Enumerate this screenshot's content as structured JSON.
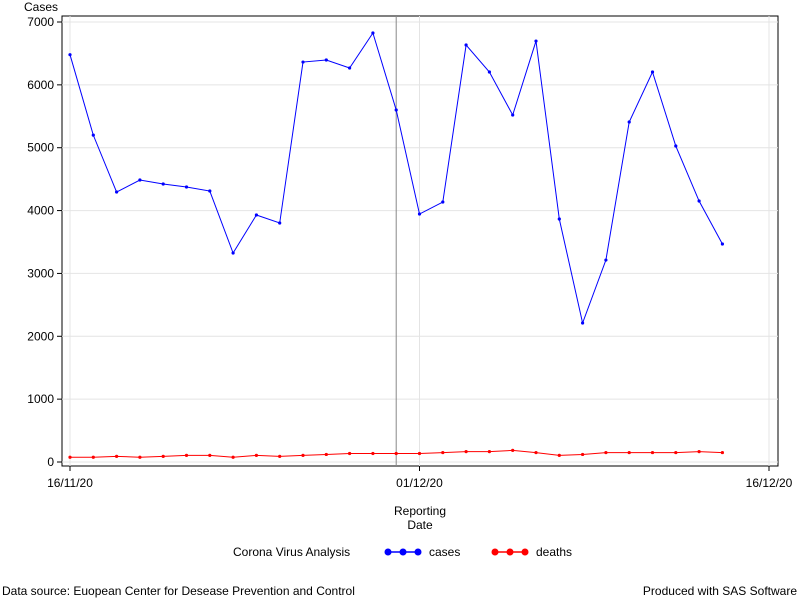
{
  "chart_data": {
    "type": "line",
    "y_label": "Cases",
    "x_label": "Reporting Date",
    "legend_title": "Corona Virus Analysis",
    "x": [
      "16/11/20",
      "17/11/20",
      "18/11/20",
      "19/11/20",
      "20/11/20",
      "21/11/20",
      "22/11/20",
      "23/11/20",
      "24/11/20",
      "25/11/20",
      "26/11/20",
      "27/11/20",
      "28/11/20",
      "29/11/20",
      "30/11/20",
      "01/12/20",
      "02/12/20",
      "03/12/20",
      "04/12/20",
      "05/12/20",
      "06/12/20",
      "07/12/20",
      "08/12/20",
      "09/12/20",
      "10/12/20",
      "11/12/20",
      "12/12/20",
      "13/12/20",
      "14/12/20"
    ],
    "series": [
      {
        "name": "cases",
        "color": "#0000ff",
        "values": [
          6480,
          5200,
          4295,
          4486,
          4423,
          4375,
          4311,
          3325,
          3929,
          3802,
          6363,
          6395,
          6268,
          6825,
          5600,
          3945,
          4136,
          6634,
          6204,
          5520,
          6697,
          3866,
          2211,
          3213,
          5409,
          6204,
          5027,
          4152,
          3468
        ]
      },
      {
        "name": "deaths",
        "color": "#ff0000",
        "values": [
          75,
          75,
          90,
          75,
          90,
          105,
          105,
          75,
          105,
          90,
          105,
          120,
          135,
          135,
          135,
          135,
          150,
          165,
          165,
          185,
          150,
          105,
          120,
          150,
          150,
          150,
          150,
          165,
          150
        ]
      }
    ],
    "xlim": [
      "16/11/20",
      "16/12/20"
    ],
    "xticks": [
      "16/11/20",
      "01/12/20",
      "16/12/20"
    ],
    "ylim": [
      0,
      7000
    ],
    "yticks": [
      0,
      1000,
      2000,
      3000,
      4000,
      5000,
      6000,
      7000
    ],
    "reference_line_x": "30/11/20",
    "grid": true,
    "footer_left": "Data source: Euopean Center for Desease Prevention and Control",
    "footer_right": "Produced with SAS Software"
  }
}
